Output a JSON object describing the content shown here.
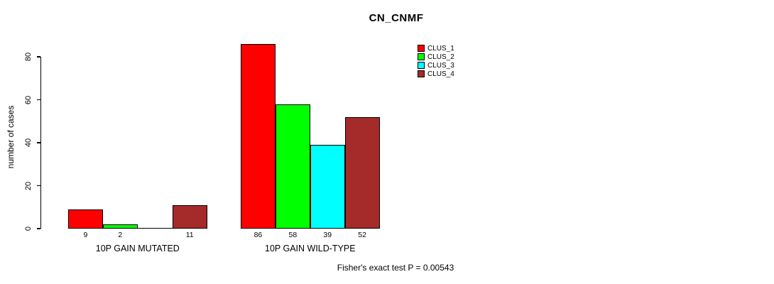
{
  "chart_data": {
    "type": "bar",
    "title": "CN_CNMF",
    "ylabel": "number of cases",
    "xlabel": "",
    "ylim": [
      0,
      80
    ],
    "yticks": [
      0,
      20,
      40,
      60,
      80
    ],
    "grid": false,
    "legend_position": "top-right",
    "background_color": "#FFFFFF",
    "axis_color": "#000000",
    "bar_border_color": "#000000",
    "categories": [
      "10P GAIN MUTATED",
      "10P GAIN WILD-TYPE"
    ],
    "series": [
      {
        "name": "CLUS_1",
        "color": "#FF0000",
        "values": [
          9,
          86
        ],
        "value_labels": [
          "9",
          "86"
        ]
      },
      {
        "name": "CLUS_2",
        "color": "#00FF00",
        "values": [
          2,
          58
        ],
        "value_labels": [
          "2",
          "58"
        ]
      },
      {
        "name": "CLUS_3",
        "color": "#00FFFF",
        "values": [
          0,
          39
        ],
        "value_labels": [
          "",
          "39"
        ]
      },
      {
        "name": "CLUS_4",
        "color": "#A52A2A",
        "values": [
          11,
          52
        ],
        "value_labels": [
          "11",
          "52"
        ]
      }
    ],
    "annotation": "Fisher's exact test P = 0.00543"
  }
}
